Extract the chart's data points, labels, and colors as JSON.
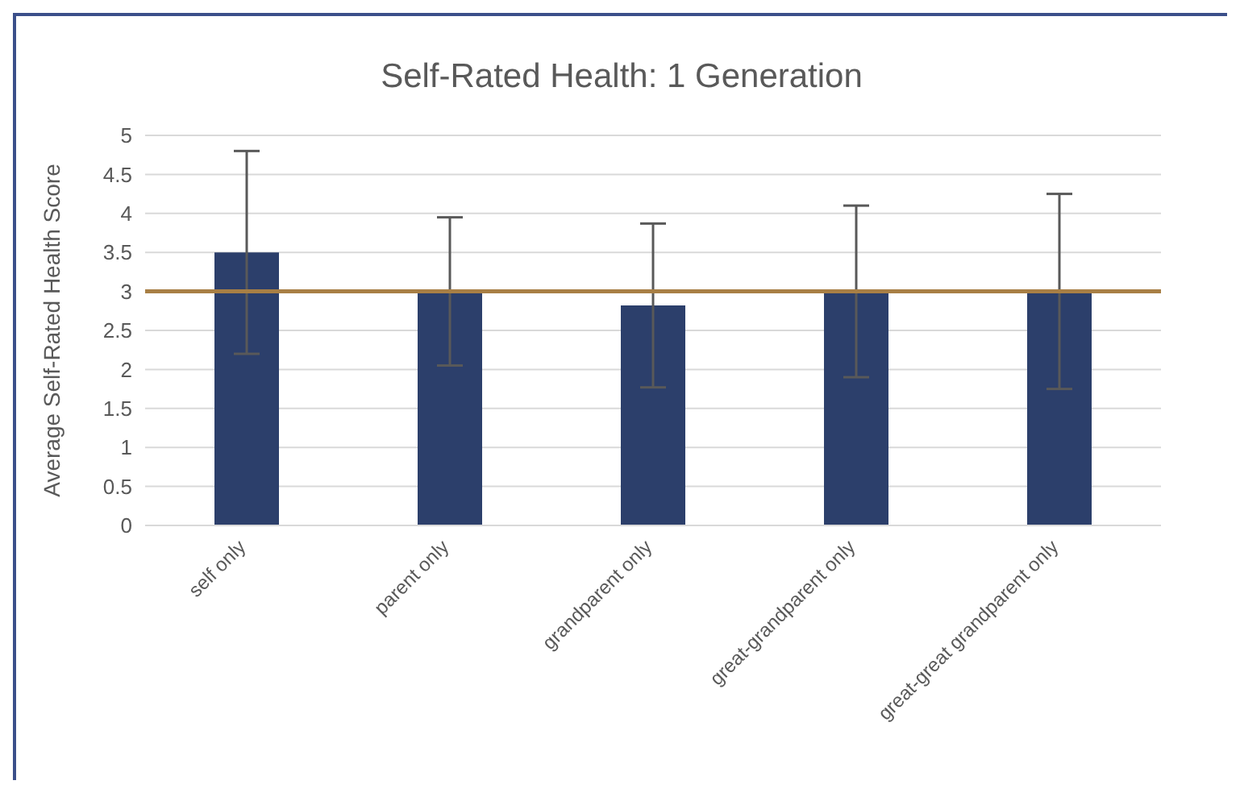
{
  "chart_data": {
    "type": "bar",
    "title": "Self-Rated Health: 1 Generation",
    "ylabel": "Average Self-Rated Health Score",
    "categories": [
      "self only",
      "parent only",
      "grandparent only",
      "great-grandparent only",
      "great-great grandparent only"
    ],
    "values": [
      3.5,
      3.0,
      2.82,
      3.0,
      3.0
    ],
    "color": "#2c3f6b",
    "errors": [
      1.3,
      0.95,
      1.05,
      1.1,
      1.25
    ],
    "ylim": [
      0,
      5
    ],
    "yticks": [
      0,
      0.5,
      1,
      1.5,
      2,
      2.5,
      3,
      3.5,
      4,
      4.5,
      5
    ],
    "grid": "y",
    "ref_lines": [
      {
        "axis": "y",
        "value": 3,
        "color": "#a87f45"
      }
    ]
  }
}
